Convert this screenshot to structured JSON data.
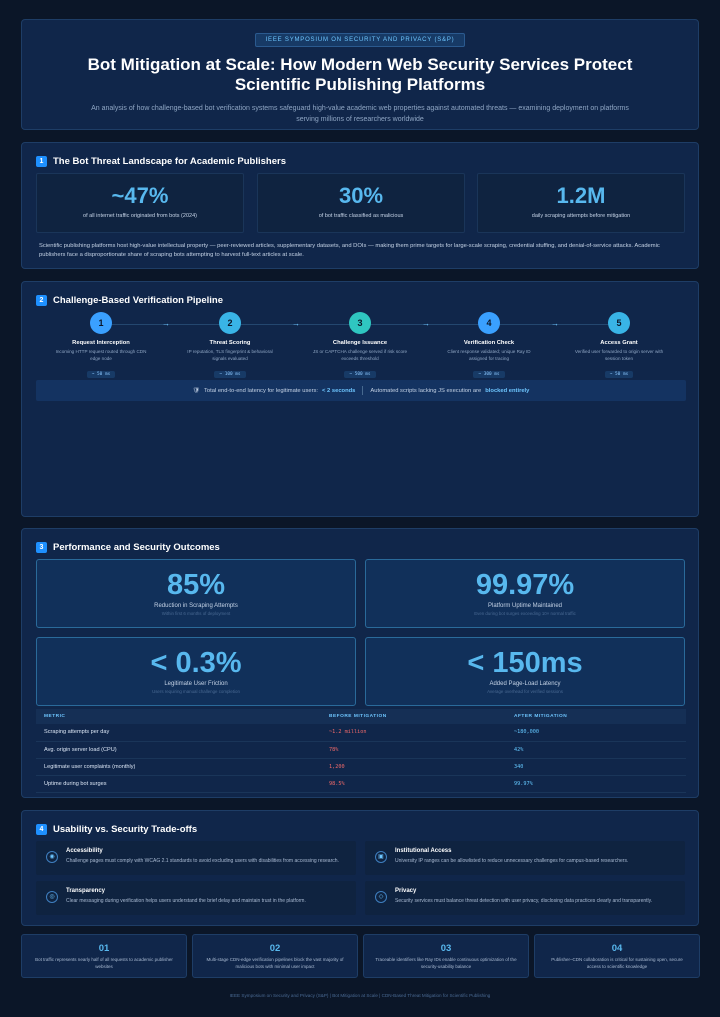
{
  "header": {
    "badge": "IEEE SYMPOSIUM ON SECURITY AND PRIVACY (S&P)",
    "title": "Bot Mitigation at Scale: How Modern Web Security Services Protect Scientific Publishing Platforms",
    "subtitle": "An analysis of how challenge-based bot verification systems safeguard high-value academic web properties against automated threats — examining deployment on platforms serving millions of researchers worldwide"
  },
  "section1": {
    "num": "1",
    "title": "The Bot Threat Landscape for Academic Publishers",
    "stats": [
      {
        "value": "~47%",
        "label": "of all internet traffic originated from bots (2024)"
      },
      {
        "value": "30%",
        "label": "of bot traffic classified as malicious"
      },
      {
        "value": "1.2M",
        "label": "daily scraping attempts before mitigation"
      }
    ],
    "paragraph": "Scientific publishing platforms host high-value intellectual property — peer-reviewed articles, supplementary datasets, and DOIs — making them prime targets for large-scale scraping, credential stuffing, and denial-of-service attacks. Academic publishers face a disproportionate share of scraping bots attempting to harvest full-text articles at scale."
  },
  "section2": {
    "num": "2",
    "title": "Challenge-Based Verification Pipeline",
    "steps": [
      {
        "n": "1",
        "name": "Request Interception",
        "desc": "Incoming HTTP request routed through CDN edge node",
        "time": "~ 50 ms",
        "color": "#3aa0ff"
      },
      {
        "n": "2",
        "name": "Threat Scoring",
        "desc": "IP reputation, TLS fingerprint & behavioral signals evaluated",
        "time": "~ 100 ms",
        "color": "#39b4e6"
      },
      {
        "n": "3",
        "name": "Challenge Issuance",
        "desc": "JS or CAPTCHA challenge served if risk score exceeds threshold",
        "time": "~ 500 ms",
        "color": "#2fc6c0"
      },
      {
        "n": "4",
        "name": "Verification Check",
        "desc": "Client response validated; unique Ray ID assigned for tracing",
        "time": "~ 300 ms",
        "color": "#3aa0ff"
      },
      {
        "n": "5",
        "name": "Access Grant",
        "desc": "Verified user forwarded to origin server with session token",
        "time": "~ 50 ms",
        "color": "#39b4e6"
      }
    ],
    "arrow": "→",
    "shield_icon": "🛡",
    "latency_prefix": "Total end-to-end latency for legitimate users:",
    "latency_value": "< 2 seconds",
    "blocked_prefix": "Automated scripts lacking JS execution are",
    "blocked_value": "blocked entirely"
  },
  "section3": {
    "num": "3",
    "title": "Performance and Security Outcomes",
    "kpis": [
      {
        "value": "85%",
        "label": "Reduction in Scraping Attempts",
        "note": "Within first 6 months of deployment"
      },
      {
        "value": "99.97%",
        "label": "Platform Uptime Maintained",
        "note": "Even during bot surges exceeding 10× normal traffic"
      },
      {
        "value": "< 0.3%",
        "label": "Legitimate User Friction",
        "note": "Users requiring manual challenge completion"
      },
      {
        "value": "< 150ms",
        "label": "Added Page-Load Latency",
        "note": "Average overhead for verified sessions"
      }
    ],
    "table": {
      "headers": [
        "METRIC",
        "BEFORE MITIGATION",
        "AFTER MITIGATION"
      ],
      "rows": [
        [
          "Scraping attempts per day",
          "~1.2 million",
          "~180,000"
        ],
        [
          "Avg. origin server load (CPU)",
          "78%",
          "42%"
        ],
        [
          "Legitimate user complaints (monthly)",
          "1,200",
          "340"
        ],
        [
          "Uptime during bot surges",
          "98.5%",
          "99.97%"
        ]
      ]
    }
  },
  "section4": {
    "num": "4",
    "title": "Usability vs. Security Trade-offs",
    "cards": [
      {
        "icon": "accessibility-icon",
        "glyph": "◉",
        "title": "Accessibility",
        "desc": "Challenge pages must comply with WCAG 2.1 standards to avoid excluding users with disabilities from accessing research."
      },
      {
        "icon": "institution-icon",
        "glyph": "▣",
        "title": "Institutional Access",
        "desc": "University IP ranges can be allowlisted to reduce unnecessary challenges for campus-based researchers."
      },
      {
        "icon": "eye-icon",
        "glyph": "◎",
        "title": "Transparency",
        "desc": "Clear messaging during verification helps users understand the brief delay and maintain trust in the platform."
      },
      {
        "icon": "shield-icon",
        "glyph": "◇",
        "title": "Privacy",
        "desc": "Security services must balance threat detection with user privacy, disclosing data practices clearly and transparently."
      }
    ]
  },
  "points": [
    {
      "num": "01",
      "text": "Bot traffic represents nearly half of all requests to academic publisher websites"
    },
    {
      "num": "02",
      "text": "Multi-stage CDN-edge verification pipelines block the vast majority of malicious bots with minimal user impact"
    },
    {
      "num": "03",
      "text": "Traceable identifiers like Ray IDs enable continuous optimization of the security-usability balance"
    },
    {
      "num": "04",
      "text": "Publisher–CDN collaboration is critical for sustaining open, secure access to scientific knowledge"
    }
  ],
  "footer": "IEEE Symposium on Security and Privacy (S&P)  |  Bot Mitigation at Scale  |  CDN-Based Threat Mitigation for Scientific Publishing"
}
